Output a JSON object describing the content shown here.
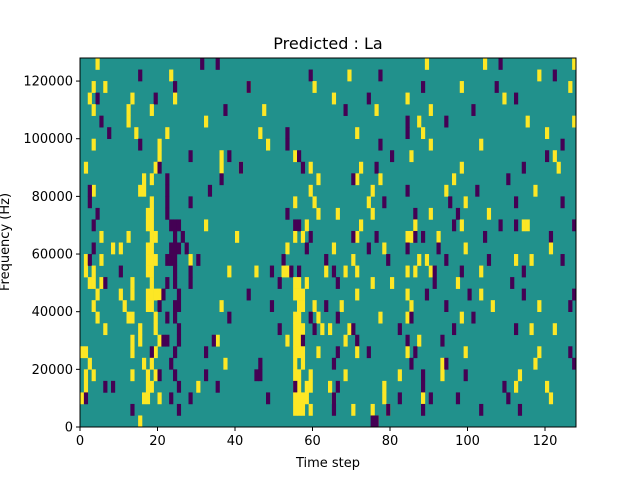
{
  "chart_data": {
    "type": "heatmap",
    "title": "Predicted : La",
    "xlabel": "Time step",
    "ylabel": "Frequency (Hz)",
    "xlim": [
      0,
      128
    ],
    "ylim": [
      0,
      128000
    ],
    "n_rows": 32,
    "row_height_hz": 4000,
    "xticks": [
      0,
      20,
      40,
      60,
      80,
      100,
      120
    ],
    "yticks": [
      0,
      20000,
      40000,
      60000,
      80000,
      100000,
      120000
    ],
    "colors": {
      "background": "#21918c",
      "yellow": "#fde725",
      "dark": "#440154"
    },
    "rows_top_to_bottom": [
      {
        "y": [
          4,
          89,
          104,
          127
        ],
        "d": [
          31,
          35,
          108
        ]
      },
      {
        "y": [
          23,
          69,
          118
        ],
        "d": [
          15,
          59,
          77,
          122
        ]
      },
      {
        "y": [
          3,
          6,
          43,
          60,
          98,
          126
        ],
        "d": [
          24,
          43,
          88,
          107
        ]
      },
      {
        "y": [
          2,
          13,
          24,
          65,
          84,
          109
        ],
        "d": [
          4,
          19,
          74,
          112
        ]
      },
      {
        "y": [
          3,
          12,
          18,
          47,
          76,
          90
        ],
        "d": [
          37,
          68,
          101
        ]
      },
      {
        "y": [
          12,
          32,
          87,
          115,
          127
        ],
        "d": [
          5,
          84,
          94
        ]
      },
      {
        "y": [
          14,
          22,
          46,
          71,
          88,
          120
        ],
        "d": [
          7,
          53,
          84
        ]
      },
      {
        "y": [
          3,
          20,
          48,
          90,
          103
        ],
        "d": [
          15,
          53,
          77,
          124
        ]
      },
      {
        "y": [
          20,
          36,
          55,
          85,
          122
        ],
        "d": [
          28,
          38,
          56,
          80,
          120
        ]
      },
      {
        "y": [
          1,
          19,
          36,
          41,
          59,
          72,
          98,
          123
        ],
        "d": [
          20,
          41,
          57,
          76,
          114
        ]
      },
      {
        "y": [
          16,
          18,
          61,
          71,
          77,
          96
        ],
        "d": [
          22,
          36,
          70,
          110
        ]
      },
      {
        "y": [
          3,
          15,
          16,
          59,
          75,
          94,
          117
        ],
        "d": [
          2,
          22,
          33,
          84,
          102
        ]
      },
      {
        "y": [
          18,
          55,
          60,
          74,
          99
        ],
        "d": [
          2,
          22,
          28,
          78,
          95,
          112,
          124
        ]
      },
      {
        "y": [
          17,
          18,
          61,
          66,
          75,
          90,
          105
        ],
        "d": [
          4,
          22,
          53,
          86,
          97
        ]
      },
      {
        "y": [
          17,
          18,
          32,
          58,
          72,
          86,
          98,
          114,
          115
        ],
        "d": [
          3,
          23,
          24,
          25,
          55,
          56,
          96,
          108,
          112,
          127
        ]
      },
      {
        "y": [
          5,
          12,
          18,
          19,
          40,
          55,
          57,
          71,
          84,
          85,
          92
        ],
        "d": [
          24,
          26,
          59,
          70,
          76,
          86,
          88,
          104,
          121
        ]
      },
      {
        "y": [
          8,
          10,
          17,
          18,
          53,
          65,
          78,
          99,
          121
        ],
        "d": [
          3,
          23,
          24,
          25,
          27,
          58,
          74,
          84,
          92
        ]
      },
      {
        "y": [
          1,
          5,
          17,
          18,
          19,
          28,
          70,
          87,
          89,
          112,
          116
        ],
        "d": [
          2,
          22,
          23,
          24,
          30,
          52,
          63,
          79,
          94,
          105,
          124
        ]
      },
      {
        "y": [
          1,
          3,
          17,
          18,
          38,
          45,
          52,
          53,
          63,
          68,
          71,
          84,
          86,
          90,
          103
        ],
        "d": [
          10,
          24,
          28,
          49,
          54,
          56,
          65,
          91,
          98,
          114
        ]
      },
      {
        "y": [
          2,
          3,
          5,
          13,
          18,
          55,
          56,
          58,
          75,
          80,
          97
        ],
        "d": [
          6,
          22,
          24,
          28,
          51,
          66,
          91,
          111
        ]
      },
      {
        "y": [
          4,
          10,
          13,
          17,
          18,
          19,
          20,
          55,
          56,
          57,
          71,
          84,
          103
        ],
        "d": [
          21,
          25,
          43,
          89,
          100,
          114,
          127
        ]
      },
      {
        "y": [
          3,
          11,
          17,
          18,
          36,
          56,
          57,
          60,
          67,
          85,
          106,
          118
        ],
        "d": [
          20,
          24,
          25,
          49,
          63,
          94,
          126
        ]
      },
      {
        "y": [
          4,
          12,
          13,
          19,
          55,
          56,
          61,
          77,
          84,
          98
        ],
        "d": [
          22,
          24,
          38,
          59,
          66,
          85,
          101
        ]
      },
      {
        "y": [
          6,
          15,
          19,
          55,
          56,
          57,
          62,
          64,
          69,
          116,
          122
        ],
        "d": [
          25,
          51,
          60,
          70,
          82,
          96,
          112
        ]
      },
      {
        "y": [
          13,
          15,
          20,
          35,
          53,
          55,
          56,
          68,
          87
        ],
        "d": [
          21,
          22,
          25,
          34,
          57,
          71,
          84,
          93
        ]
      },
      {
        "y": [
          0,
          1,
          13,
          19,
          55,
          56,
          57,
          61,
          71,
          84,
          99,
          118
        ],
        "d": [
          18,
          24,
          32,
          66,
          74,
          86,
          126
        ]
      },
      {
        "y": [
          2,
          16,
          18,
          37,
          55,
          57,
          93,
          117
        ],
        "d": [
          23,
          46,
          65,
          85,
          94,
          127
        ]
      },
      {
        "y": [
          1,
          3,
          13,
          17,
          19,
          55,
          56,
          59,
          68,
          82,
          93,
          113
        ],
        "d": [
          20,
          24,
          32,
          45,
          46,
          88,
          99
        ]
      },
      {
        "y": [
          1,
          17,
          18,
          30,
          55,
          56,
          58,
          59,
          64,
          78,
          112,
          120
        ],
        "d": [
          6,
          8,
          25,
          35,
          55,
          66,
          88,
          109
        ]
      },
      {
        "y": [
          0,
          16,
          17,
          20,
          55,
          56,
          57,
          58,
          65,
          78,
          88,
          121
        ],
        "d": [
          1,
          23,
          28,
          48,
          65,
          82,
          90,
          97,
          110
        ]
      },
      {
        "y": [
          55,
          56,
          57,
          59,
          70,
          75,
          79
        ],
        "d": [
          13,
          25,
          65,
          79,
          88,
          103,
          113
        ]
      },
      {
        "y": [
          15,
          76
        ],
        "d": [
          75,
          76
        ]
      }
    ]
  }
}
